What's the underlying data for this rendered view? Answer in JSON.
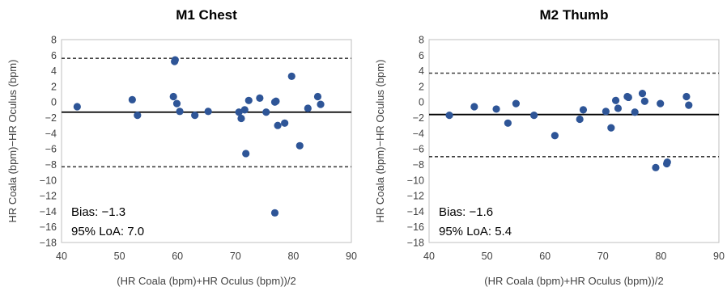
{
  "chart_data": [
    {
      "type": "scatter",
      "title": "M1 Chest",
      "xlabel": "(HR Coala (bpm)+HR Oculus (bpm))/2",
      "ylabel": "HR Coala (bpm)−HR Oculus (bpm)",
      "xlim": [
        40,
        90
      ],
      "ylim": [
        -18,
        8
      ],
      "xticks": [
        40,
        50,
        60,
        70,
        80,
        90
      ],
      "yticks": [
        8,
        6,
        4,
        2,
        0,
        -2,
        -4,
        -6,
        -8,
        -10,
        -12,
        -14,
        -16,
        -18
      ],
      "xtick_labels": [
        "40",
        "50",
        "60",
        "70",
        "80",
        "90"
      ],
      "ytick_labels": [
        "8",
        "6",
        "4",
        "2",
        "0",
        "−2",
        "−4",
        "−6",
        "−8",
        "−10",
        "−12",
        "−14",
        "−16",
        "−18"
      ],
      "grid": false,
      "bias_line": -1.3,
      "loa_lines": [
        5.6,
        -8.3
      ],
      "annotations": [
        "Bias: −1.3",
        "95% LoA: 7.0"
      ],
      "color": "#2e5597",
      "points": [
        {
          "x": 42.7,
          "y": -0.6
        },
        {
          "x": 52.2,
          "y": 0.3
        },
        {
          "x": 53.1,
          "y": -1.7
        },
        {
          "x": 59.3,
          "y": 0.7
        },
        {
          "x": 59.5,
          "y": 5.2
        },
        {
          "x": 59.6,
          "y": 5.4
        },
        {
          "x": 59.9,
          "y": -0.2
        },
        {
          "x": 60.4,
          "y": -1.2
        },
        {
          "x": 63.0,
          "y": -1.7
        },
        {
          "x": 65.3,
          "y": -1.2
        },
        {
          "x": 70.6,
          "y": -1.3
        },
        {
          "x": 71.0,
          "y": -2.1
        },
        {
          "x": 71.6,
          "y": -1.0
        },
        {
          "x": 71.8,
          "y": -6.6
        },
        {
          "x": 72.3,
          "y": 0.2
        },
        {
          "x": 74.2,
          "y": 0.5
        },
        {
          "x": 75.3,
          "y": -1.3
        },
        {
          "x": 76.8,
          "y": 0.0
        },
        {
          "x": 77.0,
          "y": 0.1
        },
        {
          "x": 77.3,
          "y": -3.0
        },
        {
          "x": 76.8,
          "y": -14.2
        },
        {
          "x": 78.5,
          "y": -2.7
        },
        {
          "x": 79.7,
          "y": 3.3
        },
        {
          "x": 81.1,
          "y": -5.6
        },
        {
          "x": 82.5,
          "y": -0.8
        },
        {
          "x": 84.2,
          "y": 0.7
        },
        {
          "x": 84.7,
          "y": -0.3
        }
      ]
    },
    {
      "type": "scatter",
      "title": "M2 Thumb",
      "xlabel": "(HR Coala (bpm)+HR Oculus (bpm))/2",
      "ylabel": "HR Coala (bpm)−HR Oculus (bpm)",
      "xlim": [
        40,
        90
      ],
      "ylim": [
        -18,
        8
      ],
      "xticks": [
        40,
        50,
        60,
        70,
        80,
        90
      ],
      "yticks": [
        8,
        6,
        4,
        2,
        0,
        -2,
        -4,
        -6,
        -8,
        -10,
        -12,
        -14,
        -16,
        -18
      ],
      "xtick_labels": [
        "40",
        "50",
        "60",
        "70",
        "80",
        "90"
      ],
      "ytick_labels": [
        "8",
        "6",
        "4",
        "2",
        "0",
        "−2",
        "−4",
        "−6",
        "−8",
        "−10",
        "−12",
        "−14",
        "−16",
        "−18"
      ],
      "grid": false,
      "bias_line": -1.6,
      "loa_lines": [
        3.7,
        -7.0
      ],
      "annotations": [
        "Bias: −1.6",
        "95% LoA: 5.4"
      ],
      "color": "#2e5597",
      "points": [
        {
          "x": 43.5,
          "y": -1.7
        },
        {
          "x": 47.8,
          "y": -0.6
        },
        {
          "x": 51.6,
          "y": -0.9
        },
        {
          "x": 53.6,
          "y": -2.7
        },
        {
          "x": 55.0,
          "y": -0.2
        },
        {
          "x": 58.1,
          "y": -1.7
        },
        {
          "x": 61.7,
          "y": -4.3
        },
        {
          "x": 66.0,
          "y": -2.2
        },
        {
          "x": 66.6,
          "y": -1.0
        },
        {
          "x": 70.5,
          "y": -1.2
        },
        {
          "x": 71.4,
          "y": -3.3
        },
        {
          "x": 72.2,
          "y": 0.2
        },
        {
          "x": 72.6,
          "y": -0.8
        },
        {
          "x": 74.2,
          "y": 0.7
        },
        {
          "x": 74.4,
          "y": 0.6
        },
        {
          "x": 75.5,
          "y": -1.3
        },
        {
          "x": 76.8,
          "y": 1.1
        },
        {
          "x": 77.2,
          "y": 0.1
        },
        {
          "x": 79.1,
          "y": -8.4
        },
        {
          "x": 79.9,
          "y": -0.2
        },
        {
          "x": 81.0,
          "y": -7.9
        },
        {
          "x": 81.1,
          "y": -7.7
        },
        {
          "x": 84.4,
          "y": 0.7
        },
        {
          "x": 84.8,
          "y": -0.4
        }
      ]
    }
  ]
}
